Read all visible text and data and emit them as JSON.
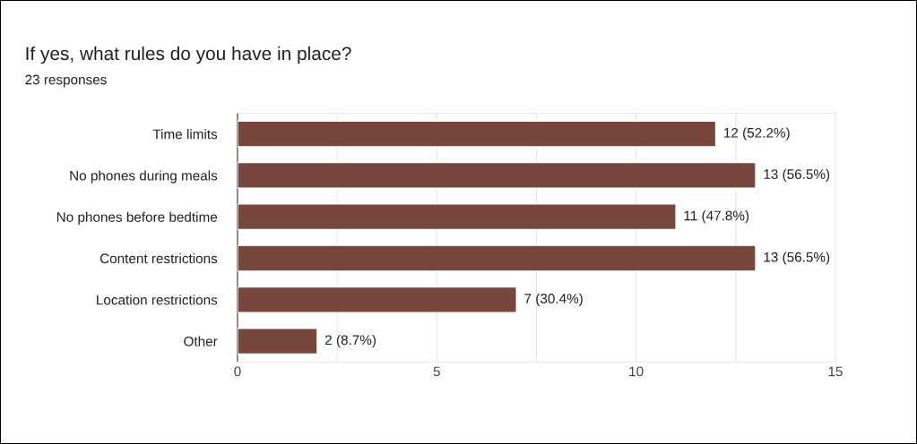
{
  "chart_data": {
    "type": "bar",
    "orientation": "horizontal",
    "title": "If yes, what rules do you have in place?",
    "subtitle": "23 responses",
    "categories": [
      "Time limits",
      "No phones during meals",
      "No phones before bedtime",
      "Content restrictions",
      "Location restrictions",
      "Other"
    ],
    "values": [
      12,
      13,
      11,
      13,
      7,
      2
    ],
    "value_labels": [
      "12 (52.2%)",
      "13 (56.5%)",
      "11 (47.8%)",
      "13 (56.5%)",
      "7 (30.4%)",
      "2 (8.7%)"
    ],
    "color": "#77463d",
    "xlim": [
      0,
      15
    ],
    "xticks": [
      0,
      {
        "value": 2.5,
        "label": null
      },
      5,
      {
        "value": 7.5,
        "label": null
      },
      10,
      {
        "value": 12.5,
        "label": null
      },
      15
    ],
    "grid": "x",
    "legend": false
  }
}
